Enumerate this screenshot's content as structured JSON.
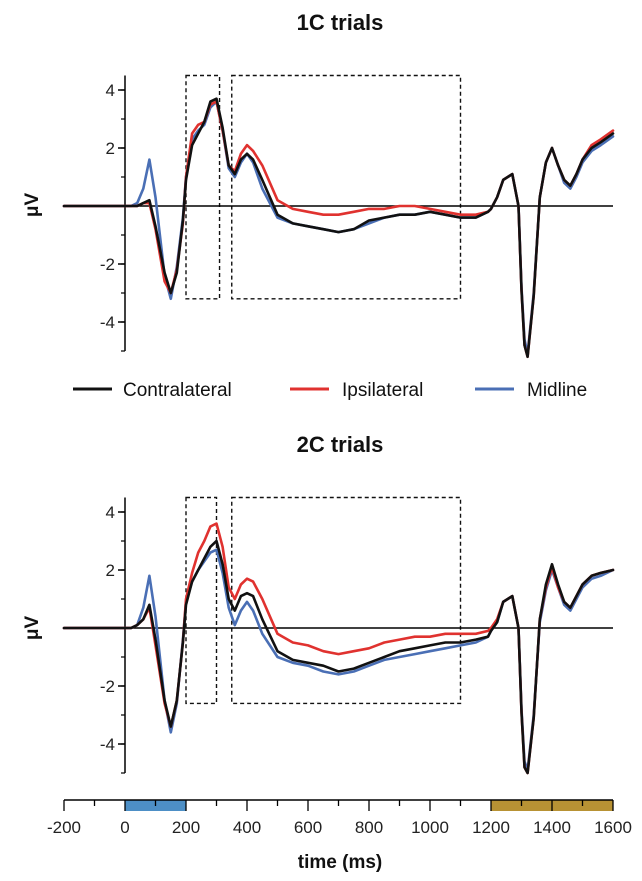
{
  "chart_data": {
    "type": "line",
    "shared_x_axis": {
      "label": "time (ms)",
      "lim": [
        -200,
        1600
      ],
      "ticks": [
        -200,
        0,
        200,
        400,
        600,
        800,
        1000,
        1200,
        1400,
        1600
      ],
      "tick_labels": [
        "-200",
        "0",
        "200",
        "400",
        "600",
        "800",
        "1000",
        "1200",
        "1400",
        "1600"
      ],
      "periods": [
        {
          "start": 0,
          "end": 200,
          "color": "#4d8fc6"
        },
        {
          "start": 1200,
          "end": 1600,
          "color": "#b89234"
        }
      ]
    },
    "legend": {
      "placement": "between-panels",
      "entries": [
        {
          "label": "Contralateral",
          "color": "#111111"
        },
        {
          "label": "Ipsilateral",
          "color": "#e0322f"
        },
        {
          "label": "Midline",
          "color": "#4a6fb5"
        }
      ]
    },
    "panels": [
      {
        "title": "1C trials",
        "ylabel": "μV",
        "ylim": [
          -5,
          4.5
        ],
        "yticks": [
          -4,
          -2,
          0,
          2,
          4
        ],
        "ytick_labels": [
          "-4",
          "-2",
          "0",
          "2",
          "4"
        ],
        "windows": [
          {
            "x0": 200,
            "x1": 310,
            "y0": -3.2,
            "y1": 5.0
          },
          {
            "x0": 350,
            "x1": 1100,
            "y0": -3.2,
            "y1": 5.0
          }
        ],
        "series": [
          {
            "name": "Midline",
            "color": "#4a6fb5",
            "x": [
              -200,
              -100,
              -50,
              -20,
              0,
              20,
              40,
              60,
              80,
              100,
              130,
              150,
              170,
              190,
              200,
              220,
              240,
              260,
              280,
              300,
              320,
              340,
              360,
              380,
              400,
              420,
              450,
              500,
              550,
              600,
              650,
              700,
              750,
              800,
              850,
              900,
              950,
              1000,
              1050,
              1100,
              1150,
              1190,
              1200,
              1220,
              1240,
              1270,
              1290,
              1300,
              1310,
              1320,
              1340,
              1360,
              1380,
              1400,
              1420,
              1440,
              1460,
              1480,
              1500,
              1530,
              1560,
              1600
            ],
            "y": [
              0,
              0,
              0,
              0,
              0,
              0,
              0.1,
              0.6,
              1.6,
              0.3,
              -2.4,
              -3.2,
              -2.1,
              -0.4,
              1.0,
              2.3,
              2.6,
              2.8,
              3.4,
              3.6,
              2.6,
              1.3,
              1.0,
              1.5,
              1.8,
              1.5,
              0.6,
              -0.4,
              -0.6,
              -0.7,
              -0.8,
              -0.9,
              -0.8,
              -0.6,
              -0.4,
              -0.3,
              -0.3,
              -0.2,
              -0.3,
              -0.4,
              -0.4,
              -0.2,
              -0.1,
              0.3,
              0.9,
              1.1,
              0,
              -2.8,
              -4.6,
              -5.1,
              -3.0,
              0.3,
              1.5,
              2.0,
              1.4,
              0.8,
              0.6,
              1.0,
              1.5,
              1.9,
              2.1,
              2.4
            ]
          },
          {
            "name": "Ipsilateral",
            "color": "#e0322f",
            "x": [
              -200,
              -100,
              -50,
              -20,
              0,
              20,
              40,
              60,
              80,
              100,
              130,
              150,
              170,
              190,
              200,
              220,
              240,
              260,
              280,
              300,
              320,
              340,
              360,
              380,
              400,
              420,
              450,
              500,
              550,
              600,
              650,
              700,
              750,
              800,
              850,
              900,
              950,
              1000,
              1050,
              1100,
              1150,
              1190,
              1200,
              1220,
              1240,
              1270,
              1290,
              1300,
              1310,
              1320,
              1340,
              1360,
              1380,
              1400,
              1420,
              1440,
              1460,
              1480,
              1500,
              1530,
              1560,
              1600
            ],
            "y": [
              0,
              0,
              0,
              0,
              0,
              0,
              0,
              0.1,
              0.1,
              -0.8,
              -2.6,
              -3.0,
              -2.2,
              -0.6,
              1.0,
              2.5,
              2.8,
              2.9,
              3.5,
              3.6,
              2.6,
              1.4,
              1.2,
              1.8,
              2.1,
              1.9,
              1.4,
              0.2,
              -0.1,
              -0.2,
              -0.3,
              -0.3,
              -0.2,
              -0.1,
              -0.1,
              0,
              0,
              -0.1,
              -0.2,
              -0.3,
              -0.3,
              -0.2,
              -0.1,
              0.3,
              0.9,
              1.1,
              0,
              -2.9,
              -4.8,
              -5.2,
              -3.1,
              0.3,
              1.5,
              2.0,
              1.4,
              0.9,
              0.7,
              1.1,
              1.6,
              2.1,
              2.3,
              2.6
            ]
          },
          {
            "name": "Contralateral",
            "color": "#111111",
            "x": [
              -200,
              -100,
              -50,
              -20,
              0,
              20,
              40,
              60,
              80,
              100,
              130,
              150,
              170,
              190,
              200,
              220,
              240,
              260,
              280,
              300,
              320,
              340,
              360,
              380,
              400,
              420,
              450,
              500,
              550,
              600,
              650,
              700,
              750,
              800,
              850,
              900,
              950,
              1000,
              1050,
              1100,
              1150,
              1190,
              1200,
              1220,
              1240,
              1270,
              1290,
              1300,
              1310,
              1320,
              1340,
              1360,
              1380,
              1400,
              1420,
              1440,
              1460,
              1480,
              1500,
              1530,
              1560,
              1600
            ],
            "y": [
              0,
              0,
              0,
              0,
              0,
              0,
              0,
              0.1,
              0.2,
              -0.7,
              -2.3,
              -3.0,
              -2.3,
              -0.5,
              0.9,
              2.1,
              2.5,
              2.9,
              3.6,
              3.7,
              2.7,
              1.4,
              1.1,
              1.6,
              1.8,
              1.6,
              0.9,
              -0.3,
              -0.6,
              -0.7,
              -0.8,
              -0.9,
              -0.8,
              -0.5,
              -0.4,
              -0.3,
              -0.3,
              -0.2,
              -0.3,
              -0.4,
              -0.4,
              -0.2,
              -0.1,
              0.3,
              0.9,
              1.1,
              0,
              -2.9,
              -4.8,
              -5.2,
              -3.1,
              0.3,
              1.5,
              2.0,
              1.4,
              0.9,
              0.7,
              1.1,
              1.6,
              2.0,
              2.2,
              2.5
            ]
          }
        ]
      },
      {
        "title": "2C trials",
        "ylabel": "μV",
        "ylim": [
          -5,
          4.5
        ],
        "yticks": [
          -4,
          -2,
          0,
          2,
          4
        ],
        "ytick_labels": [
          "-4",
          "-2",
          "0",
          "2",
          "4"
        ],
        "windows": [
          {
            "x0": 200,
            "x1": 300,
            "y0": -2.6,
            "y1": 5.0
          },
          {
            "x0": 350,
            "x1": 1100,
            "y0": -2.6,
            "y1": 5.0
          }
        ],
        "series": [
          {
            "name": "Midline",
            "color": "#4a6fb5",
            "x": [
              -200,
              -100,
              -50,
              -20,
              0,
              20,
              40,
              60,
              80,
              100,
              130,
              150,
              170,
              190,
              200,
              220,
              240,
              260,
              280,
              300,
              320,
              340,
              360,
              380,
              400,
              420,
              450,
              500,
              550,
              600,
              650,
              700,
              750,
              800,
              850,
              900,
              950,
              1000,
              1050,
              1100,
              1150,
              1190,
              1200,
              1220,
              1240,
              1270,
              1290,
              1300,
              1310,
              1320,
              1340,
              1360,
              1380,
              1400,
              1420,
              1440,
              1460,
              1480,
              1500,
              1530,
              1560,
              1600
            ],
            "y": [
              0,
              0,
              0,
              0,
              0,
              0,
              0.1,
              0.7,
              1.8,
              0.4,
              -2.5,
              -3.6,
              -2.6,
              -0.4,
              0.9,
              1.6,
              2.0,
              2.3,
              2.6,
              2.7,
              1.9,
              0.7,
              0.1,
              0.6,
              0.9,
              0.6,
              -0.2,
              -1.0,
              -1.2,
              -1.3,
              -1.5,
              -1.6,
              -1.5,
              -1.3,
              -1.1,
              -1.0,
              -0.9,
              -0.8,
              -0.7,
              -0.6,
              -0.5,
              -0.3,
              -0.1,
              0.2,
              0.9,
              1.1,
              0,
              -2.8,
              -4.6,
              -4.9,
              -3.0,
              0.2,
              1.3,
              2.0,
              1.4,
              0.8,
              0.6,
              1.0,
              1.4,
              1.7,
              1.8,
              2.0
            ]
          },
          {
            "name": "Ipsilateral",
            "color": "#e0322f",
            "x": [
              -200,
              -100,
              -50,
              -20,
              0,
              20,
              40,
              60,
              80,
              100,
              130,
              150,
              170,
              190,
              200,
              220,
              240,
              260,
              280,
              300,
              320,
              340,
              360,
              380,
              400,
              420,
              450,
              500,
              550,
              600,
              650,
              700,
              750,
              800,
              850,
              900,
              950,
              1000,
              1050,
              1100,
              1150,
              1190,
              1200,
              1220,
              1240,
              1270,
              1290,
              1300,
              1310,
              1320,
              1340,
              1360,
              1380,
              1400,
              1420,
              1440,
              1460,
              1480,
              1500,
              1530,
              1560,
              1600
            ],
            "y": [
              0,
              0,
              0,
              0,
              0,
              0,
              0.1,
              0.3,
              0.7,
              -0.6,
              -2.6,
              -3.4,
              -2.5,
              -0.5,
              1.0,
              1.9,
              2.6,
              3.0,
              3.5,
              3.6,
              2.8,
              1.4,
              1.0,
              1.5,
              1.7,
              1.6,
              1.0,
              -0.2,
              -0.5,
              -0.6,
              -0.8,
              -0.9,
              -0.8,
              -0.7,
              -0.5,
              -0.4,
              -0.3,
              -0.3,
              -0.2,
              -0.2,
              -0.2,
              -0.1,
              0,
              0.3,
              0.9,
              1.1,
              0,
              -2.9,
              -4.8,
              -5.0,
              -3.1,
              0.3,
              1.4,
              2.1,
              1.4,
              0.9,
              0.7,
              1.1,
              1.5,
              1.8,
              1.9,
              2.0
            ]
          },
          {
            "name": "Contralateral",
            "color": "#111111",
            "x": [
              -200,
              -100,
              -50,
              -20,
              0,
              20,
              40,
              60,
              80,
              100,
              130,
              150,
              170,
              190,
              200,
              220,
              240,
              260,
              280,
              300,
              320,
              340,
              360,
              380,
              400,
              420,
              450,
              500,
              550,
              600,
              650,
              700,
              750,
              800,
              850,
              900,
              950,
              1000,
              1050,
              1100,
              1150,
              1190,
              1200,
              1220,
              1240,
              1270,
              1290,
              1300,
              1310,
              1320,
              1340,
              1360,
              1380,
              1400,
              1420,
              1440,
              1460,
              1480,
              1500,
              1530,
              1560,
              1600
            ],
            "y": [
              0,
              0,
              0,
              0,
              0,
              0,
              0.1,
              0.3,
              0.8,
              -0.4,
              -2.5,
              -3.4,
              -2.5,
              -0.5,
              0.8,
              1.6,
              2.0,
              2.4,
              2.8,
              3.0,
              2.2,
              1.0,
              0.6,
              1.1,
              1.2,
              1.1,
              0.3,
              -0.8,
              -1.1,
              -1.2,
              -1.3,
              -1.5,
              -1.4,
              -1.2,
              -1.0,
              -0.8,
              -0.7,
              -0.6,
              -0.5,
              -0.5,
              -0.4,
              -0.3,
              -0.1,
              0.2,
              0.9,
              1.1,
              0,
              -2.9,
              -4.8,
              -5.0,
              -3.1,
              0.3,
              1.5,
              2.2,
              1.5,
              0.9,
              0.7,
              1.1,
              1.5,
              1.8,
              1.9,
              2.0
            ]
          }
        ]
      }
    ]
  }
}
